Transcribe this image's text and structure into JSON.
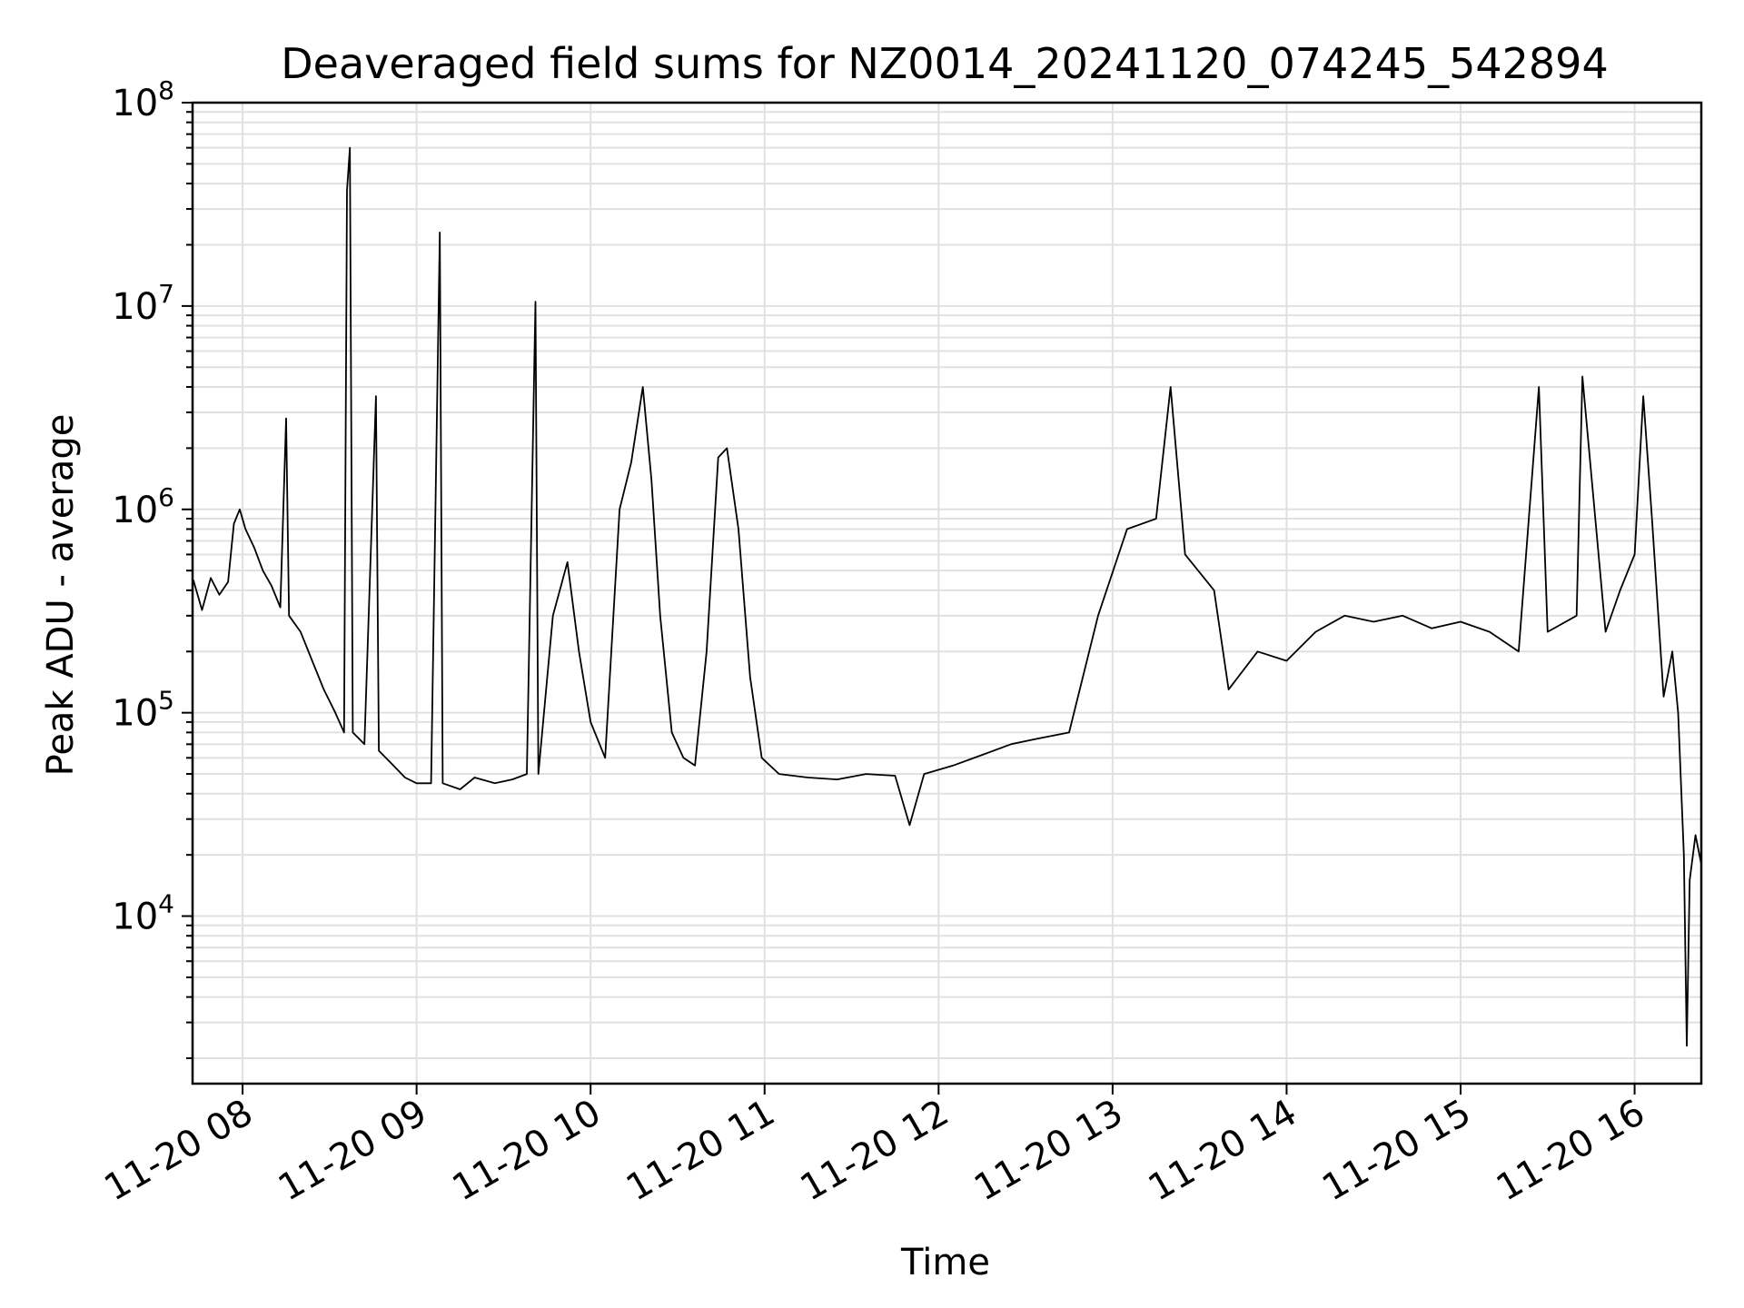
{
  "chart_data": {
    "type": "line",
    "title": "Deaveraged field sums for NZ0014_20241120_074245_542894",
    "xlabel": "Time",
    "ylabel": "Peak ADU - average",
    "yscale": "log",
    "ylim": [
      1500,
      100000000
    ],
    "xlim": [
      "2024-11-20 07:42:45",
      "2024-11-20 16:23:00"
    ],
    "grid": true,
    "line_color": "#000000",
    "grid_color": "#e0e0e0",
    "x_ticks": [
      {
        "t": "2024-11-20 08:00",
        "label": "11-20 08"
      },
      {
        "t": "2024-11-20 09:00",
        "label": "11-20 09"
      },
      {
        "t": "2024-11-20 10:00",
        "label": "11-20 10"
      },
      {
        "t": "2024-11-20 11:00",
        "label": "11-20 11"
      },
      {
        "t": "2024-11-20 12:00",
        "label": "11-20 12"
      },
      {
        "t": "2024-11-20 13:00",
        "label": "11-20 13"
      },
      {
        "t": "2024-11-20 14:00",
        "label": "11-20 14"
      },
      {
        "t": "2024-11-20 15:00",
        "label": "11-20 15"
      },
      {
        "t": "2024-11-20 16:00",
        "label": "11-20 16"
      }
    ],
    "y_ticks": [
      {
        "value": 10000,
        "base": "10",
        "exp": "4"
      },
      {
        "value": 100000,
        "base": "10",
        "exp": "5"
      },
      {
        "value": 1000000,
        "base": "10",
        "exp": "6"
      },
      {
        "value": 10000000,
        "base": "10",
        "exp": "7"
      },
      {
        "value": 100000000,
        "base": "10",
        "exp": "8"
      }
    ],
    "series": [
      {
        "points": [
          [
            "2024-11-20 07:43",
            450000
          ],
          [
            "2024-11-20 07:46",
            320000
          ],
          [
            "2024-11-20 07:49",
            460000
          ],
          [
            "2024-11-20 07:52",
            380000
          ],
          [
            "2024-11-20 07:55",
            440000
          ],
          [
            "2024-11-20 07:57",
            850000
          ],
          [
            "2024-11-20 07:59",
            1000000
          ],
          [
            "2024-11-20 08:01",
            800000
          ],
          [
            "2024-11-20 08:04",
            650000
          ],
          [
            "2024-11-20 08:07",
            500000
          ],
          [
            "2024-11-20 08:10",
            420000
          ],
          [
            "2024-11-20 08:13",
            330000
          ],
          [
            "2024-11-20 08:15",
            2800000
          ],
          [
            "2024-11-20 08:16",
            300000
          ],
          [
            "2024-11-20 08:20",
            250000
          ],
          [
            "2024-11-20 08:24",
            180000
          ],
          [
            "2024-11-20 08:28",
            130000
          ],
          [
            "2024-11-20 08:32",
            100000
          ],
          [
            "2024-11-20 08:35",
            80000
          ],
          [
            "2024-11-20 08:36",
            37000000
          ],
          [
            "2024-11-20 08:37",
            60000000
          ],
          [
            "2024-11-20 08:38",
            80000
          ],
          [
            "2024-11-20 08:42",
            70000
          ],
          [
            "2024-11-20 08:46",
            3600000
          ],
          [
            "2024-11-20 08:47",
            65000
          ],
          [
            "2024-11-20 08:52",
            55000
          ],
          [
            "2024-11-20 08:56",
            48000
          ],
          [
            "2024-11-20 09:00",
            45000
          ],
          [
            "2024-11-20 09:05",
            45000
          ],
          [
            "2024-11-20 09:08",
            23000000
          ],
          [
            "2024-11-20 09:09",
            45000
          ],
          [
            "2024-11-20 09:15",
            42000
          ],
          [
            "2024-11-20 09:20",
            48000
          ],
          [
            "2024-11-20 09:27",
            45000
          ],
          [
            "2024-11-20 09:33",
            47000
          ],
          [
            "2024-11-20 09:38",
            50000
          ],
          [
            "2024-11-20 09:41",
            10500000
          ],
          [
            "2024-11-20 09:42",
            50000
          ],
          [
            "2024-11-20 09:47",
            300000
          ],
          [
            "2024-11-20 09:52",
            550000
          ],
          [
            "2024-11-20 09:56",
            200000
          ],
          [
            "2024-11-20 10:00",
            90000
          ],
          [
            "2024-11-20 10:05",
            60000
          ],
          [
            "2024-11-20 10:10",
            1000000
          ],
          [
            "2024-11-20 10:14",
            1700000
          ],
          [
            "2024-11-20 10:18",
            4000000
          ],
          [
            "2024-11-20 10:21",
            1400000
          ],
          [
            "2024-11-20 10:24",
            300000
          ],
          [
            "2024-11-20 10:28",
            80000
          ],
          [
            "2024-11-20 10:32",
            60000
          ],
          [
            "2024-11-20 10:36",
            55000
          ],
          [
            "2024-11-20 10:40",
            200000
          ],
          [
            "2024-11-20 10:44",
            1800000
          ],
          [
            "2024-11-20 10:47",
            2000000
          ],
          [
            "2024-11-20 10:51",
            800000
          ],
          [
            "2024-11-20 10:55",
            150000
          ],
          [
            "2024-11-20 10:59",
            60000
          ],
          [
            "2024-11-20 11:05",
            50000
          ],
          [
            "2024-11-20 11:15",
            48000
          ],
          [
            "2024-11-20 11:25",
            47000
          ],
          [
            "2024-11-20 11:35",
            50000
          ],
          [
            "2024-11-20 11:45",
            49000
          ],
          [
            "2024-11-20 11:50",
            28000
          ],
          [
            "2024-11-20 11:55",
            50000
          ],
          [
            "2024-11-20 12:05",
            55000
          ],
          [
            "2024-11-20 12:15",
            62000
          ],
          [
            "2024-11-20 12:25",
            70000
          ],
          [
            "2024-11-20 12:35",
            75000
          ],
          [
            "2024-11-20 12:45",
            80000
          ],
          [
            "2024-11-20 12:55",
            300000
          ],
          [
            "2024-11-20 13:05",
            800000
          ],
          [
            "2024-11-20 13:15",
            900000
          ],
          [
            "2024-11-20 13:20",
            4000000
          ],
          [
            "2024-11-20 13:25",
            600000
          ],
          [
            "2024-11-20 13:35",
            400000
          ],
          [
            "2024-11-20 13:40",
            130000
          ],
          [
            "2024-11-20 13:50",
            200000
          ],
          [
            "2024-11-20 14:00",
            180000
          ],
          [
            "2024-11-20 14:10",
            250000
          ],
          [
            "2024-11-20 14:20",
            300000
          ],
          [
            "2024-11-20 14:30",
            280000
          ],
          [
            "2024-11-20 14:40",
            300000
          ],
          [
            "2024-11-20 14:50",
            260000
          ],
          [
            "2024-11-20 15:00",
            280000
          ],
          [
            "2024-11-20 15:10",
            250000
          ],
          [
            "2024-11-20 15:20",
            200000
          ],
          [
            "2024-11-20 15:27",
            4000000
          ],
          [
            "2024-11-20 15:30",
            250000
          ],
          [
            "2024-11-20 15:40",
            300000
          ],
          [
            "2024-11-20 15:42",
            4500000
          ],
          [
            "2024-11-20 15:50",
            250000
          ],
          [
            "2024-11-20 15:55",
            400000
          ],
          [
            "2024-11-20 16:00",
            600000
          ],
          [
            "2024-11-20 16:03",
            3600000
          ],
          [
            "2024-11-20 16:06",
            900000
          ],
          [
            "2024-11-20 16:10",
            120000
          ],
          [
            "2024-11-20 16:13",
            200000
          ],
          [
            "2024-11-20 16:15",
            100000
          ],
          [
            "2024-11-20 16:17",
            20000
          ],
          [
            "2024-11-20 16:18",
            2300
          ],
          [
            "2024-11-20 16:19",
            15000
          ],
          [
            "2024-11-20 16:21",
            25000
          ],
          [
            "2024-11-20 16:23",
            18000
          ]
        ]
      }
    ]
  }
}
